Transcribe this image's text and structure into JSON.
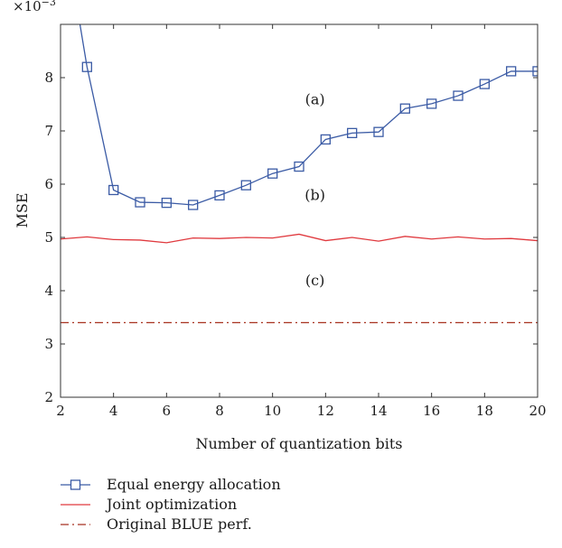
{
  "chart_data": {
    "type": "line",
    "xlabel": "Number of quantization bits",
    "ylabel": "MSE",
    "y_multiplier": "×10",
    "y_multiplier_exp": "−3",
    "xlim": [
      2,
      20
    ],
    "ylim": [
      2,
      9
    ],
    "xticks": [
      2,
      4,
      6,
      8,
      10,
      12,
      14,
      16,
      18,
      20
    ],
    "yticks": [
      2,
      3,
      4,
      5,
      6,
      7,
      8
    ],
    "grid": false,
    "legend_position": "bottom",
    "series": [
      {
        "name": "Equal energy allocation",
        "color": "#3b5ba5",
        "line": "solid",
        "marker": "square",
        "x": [
          2,
          3,
          4,
          5,
          6,
          7,
          8,
          9,
          10,
          11,
          12,
          13,
          14,
          15,
          16,
          17,
          18,
          19,
          20
        ],
        "y": [
          11.2,
          8.2,
          5.89,
          5.66,
          5.65,
          5.61,
          5.79,
          5.98,
          6.2,
          6.33,
          6.84,
          6.96,
          6.98,
          7.42,
          7.51,
          7.66,
          7.88,
          8.12,
          8.12
        ]
      },
      {
        "name": "Joint optimization",
        "color": "#e0393e",
        "line": "solid",
        "marker": "none",
        "x": [
          2,
          3,
          4,
          5,
          6,
          7,
          8,
          9,
          10,
          11,
          12,
          13,
          14,
          15,
          16,
          17,
          18,
          19,
          20
        ],
        "y": [
          4.97,
          5.01,
          4.96,
          4.95,
          4.9,
          4.99,
          4.98,
          5.0,
          4.99,
          5.06,
          4.94,
          5.0,
          4.93,
          5.02,
          4.97,
          5.01,
          4.97,
          4.98,
          4.94
        ]
      },
      {
        "name": "Original BLUE perf.",
        "color": "#a83220",
        "line": "dashdot",
        "marker": "none",
        "x": [
          2,
          20
        ],
        "y": [
          3.4,
          3.4
        ]
      }
    ],
    "annotations": [
      {
        "text": "(a)",
        "x": 11.6,
        "y": 7.5
      },
      {
        "text": "(b)",
        "x": 11.6,
        "y": 5.7
      },
      {
        "text": "(c)",
        "x": 11.6,
        "y": 4.1
      }
    ]
  }
}
